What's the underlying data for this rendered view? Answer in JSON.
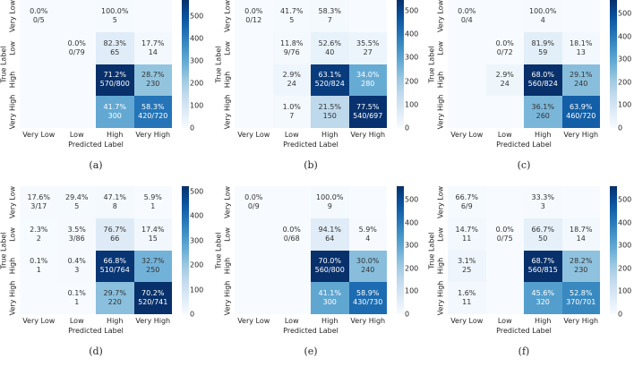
{
  "chart_data": [
    {
      "type": "heatmap",
      "caption": "(a)",
      "xlabel": "Predicted Label",
      "ylabel": "True Label",
      "categories": [
        "Very Low",
        "Low",
        "High",
        "Very High"
      ],
      "colorbar_max": 570,
      "colorbar_ticks": [
        "0",
        "100",
        "200",
        "300",
        "400",
        "500"
      ],
      "cells": [
        [
          {
            "pct": "0.0%",
            "count": "0/5"
          },
          null,
          {
            "pct": "100.0%",
            "count": "5"
          },
          null
        ],
        [
          null,
          {
            "pct": "0.0%",
            "count": "0/79"
          },
          {
            "pct": "82.3%",
            "count": "65"
          },
          {
            "pct": "17.7%",
            "count": "14"
          }
        ],
        [
          null,
          null,
          {
            "pct": "71.2%",
            "count": "570/800"
          },
          {
            "pct": "28.7%",
            "count": "230"
          }
        ],
        [
          null,
          null,
          {
            "pct": "41.7%",
            "count": "300"
          },
          {
            "pct": "58.3%",
            "count": "420/720"
          }
        ]
      ]
    },
    {
      "type": "heatmap",
      "caption": "(b)",
      "xlabel": "Predicted Label",
      "ylabel": "True Label",
      "categories": [
        "Very Low",
        "Low",
        "High",
        "Very High"
      ],
      "colorbar_max": 545,
      "colorbar_ticks": [
        "0",
        "100",
        "200",
        "300",
        "400",
        "500"
      ],
      "cells": [
        [
          {
            "pct": "0.0%",
            "count": "0/12"
          },
          {
            "pct": "41.7%",
            "count": "5"
          },
          {
            "pct": "58.3%",
            "count": "7"
          },
          null
        ],
        [
          null,
          {
            "pct": "11.8%",
            "count": "9/76"
          },
          {
            "pct": "52.6%",
            "count": "40"
          },
          {
            "pct": "35.5%",
            "count": "27"
          }
        ],
        [
          null,
          {
            "pct": "2.9%",
            "count": "24"
          },
          {
            "pct": "63.1%",
            "count": "520/824"
          },
          {
            "pct": "34.0%",
            "count": "280"
          }
        ],
        [
          null,
          {
            "pct": "1.0%",
            "count": "7"
          },
          {
            "pct": "21.5%",
            "count": "150"
          },
          {
            "pct": "77.5%",
            "count": "540/697"
          }
        ]
      ]
    },
    {
      "type": "heatmap",
      "caption": "(c)",
      "xlabel": "Predicted Label",
      "ylabel": "True Label",
      "categories": [
        "Very Low",
        "Low",
        "High",
        "Very High"
      ],
      "colorbar_max": 560,
      "colorbar_ticks": [
        "0",
        "100",
        "200",
        "300",
        "400",
        "500"
      ],
      "cells": [
        [
          {
            "pct": "0.0%",
            "count": "0/4"
          },
          null,
          {
            "pct": "100.0%",
            "count": "4"
          },
          null
        ],
        [
          null,
          {
            "pct": "0.0%",
            "count": "0/72"
          },
          {
            "pct": "81.9%",
            "count": "59"
          },
          {
            "pct": "18.1%",
            "count": "13"
          }
        ],
        [
          null,
          {
            "pct": "2.9%",
            "count": "24"
          },
          {
            "pct": "68.0%",
            "count": "560/824"
          },
          {
            "pct": "29.1%",
            "count": "240"
          }
        ],
        [
          null,
          null,
          {
            "pct": "36.1%",
            "count": "260"
          },
          {
            "pct": "63.9%",
            "count": "460/720"
          }
        ]
      ]
    },
    {
      "type": "heatmap",
      "caption": "(d)",
      "xlabel": "Predicted Label",
      "ylabel": "True Label",
      "categories": [
        "Very Low",
        "Low",
        "High",
        "Very High"
      ],
      "colorbar_max": 520,
      "colorbar_ticks": [
        "0",
        "100",
        "200",
        "300",
        "400",
        "500"
      ],
      "cells": [
        [
          {
            "pct": "17.6%",
            "count": "3/17"
          },
          {
            "pct": "29.4%",
            "count": "5"
          },
          {
            "pct": "47.1%",
            "count": "8"
          },
          {
            "pct": "5.9%",
            "count": "1"
          }
        ],
        [
          {
            "pct": "2.3%",
            "count": "2"
          },
          {
            "pct": "3.5%",
            "count": "3/86"
          },
          {
            "pct": "76.7%",
            "count": "66"
          },
          {
            "pct": "17.4%",
            "count": "15"
          }
        ],
        [
          {
            "pct": "0.1%",
            "count": "1"
          },
          {
            "pct": "0.4%",
            "count": "3"
          },
          {
            "pct": "66.8%",
            "count": "510/764"
          },
          {
            "pct": "32.7%",
            "count": "250"
          }
        ],
        [
          null,
          {
            "pct": "0.1%",
            "count": "1"
          },
          {
            "pct": "29.7%",
            "count": "220"
          },
          {
            "pct": "70.2%",
            "count": "520/741"
          }
        ]
      ]
    },
    {
      "type": "heatmap",
      "caption": "(e)",
      "xlabel": "Predicted Label",
      "ylabel": "True Label",
      "categories": [
        "Very Low",
        "Low",
        "High",
        "Very High"
      ],
      "colorbar_max": 560,
      "colorbar_ticks": [
        "0",
        "100",
        "200",
        "300",
        "400",
        "500"
      ],
      "cells": [
        [
          {
            "pct": "0.0%",
            "count": "0/9"
          },
          null,
          {
            "pct": "100.0%",
            "count": "9"
          },
          null
        ],
        [
          null,
          {
            "pct": "0.0%",
            "count": "0/68"
          },
          {
            "pct": "94.1%",
            "count": "64"
          },
          {
            "pct": "5.9%",
            "count": "4"
          }
        ],
        [
          null,
          null,
          {
            "pct": "70.0%",
            "count": "560/800"
          },
          {
            "pct": "30.0%",
            "count": "240"
          }
        ],
        [
          null,
          null,
          {
            "pct": "41.1%",
            "count": "300"
          },
          {
            "pct": "58.9%",
            "count": "430/730"
          }
        ]
      ]
    },
    {
      "type": "heatmap",
      "caption": "(f)",
      "xlabel": "Predicted Label",
      "ylabel": "True Label",
      "categories": [
        "Very Low",
        "Low",
        "High",
        "Very High"
      ],
      "colorbar_max": 560,
      "colorbar_ticks": [
        "0",
        "100",
        "200",
        "300",
        "400",
        "500"
      ],
      "cells": [
        [
          {
            "pct": "66.7%",
            "count": "6/9"
          },
          null,
          {
            "pct": "33.3%",
            "count": "3"
          },
          null
        ],
        [
          {
            "pct": "14.7%",
            "count": "11"
          },
          {
            "pct": "0.0%",
            "count": "0/75"
          },
          {
            "pct": "66.7%",
            "count": "50"
          },
          {
            "pct": "18.7%",
            "count": "14"
          }
        ],
        [
          {
            "pct": "3.1%",
            "count": "25"
          },
          null,
          {
            "pct": "68.7%",
            "count": "560/815"
          },
          {
            "pct": "28.2%",
            "count": "230"
          }
        ],
        [
          {
            "pct": "1.6%",
            "count": "11"
          },
          null,
          {
            "pct": "45.6%",
            "count": "320"
          },
          {
            "pct": "52.8%",
            "count": "370/701"
          }
        ]
      ]
    }
  ]
}
